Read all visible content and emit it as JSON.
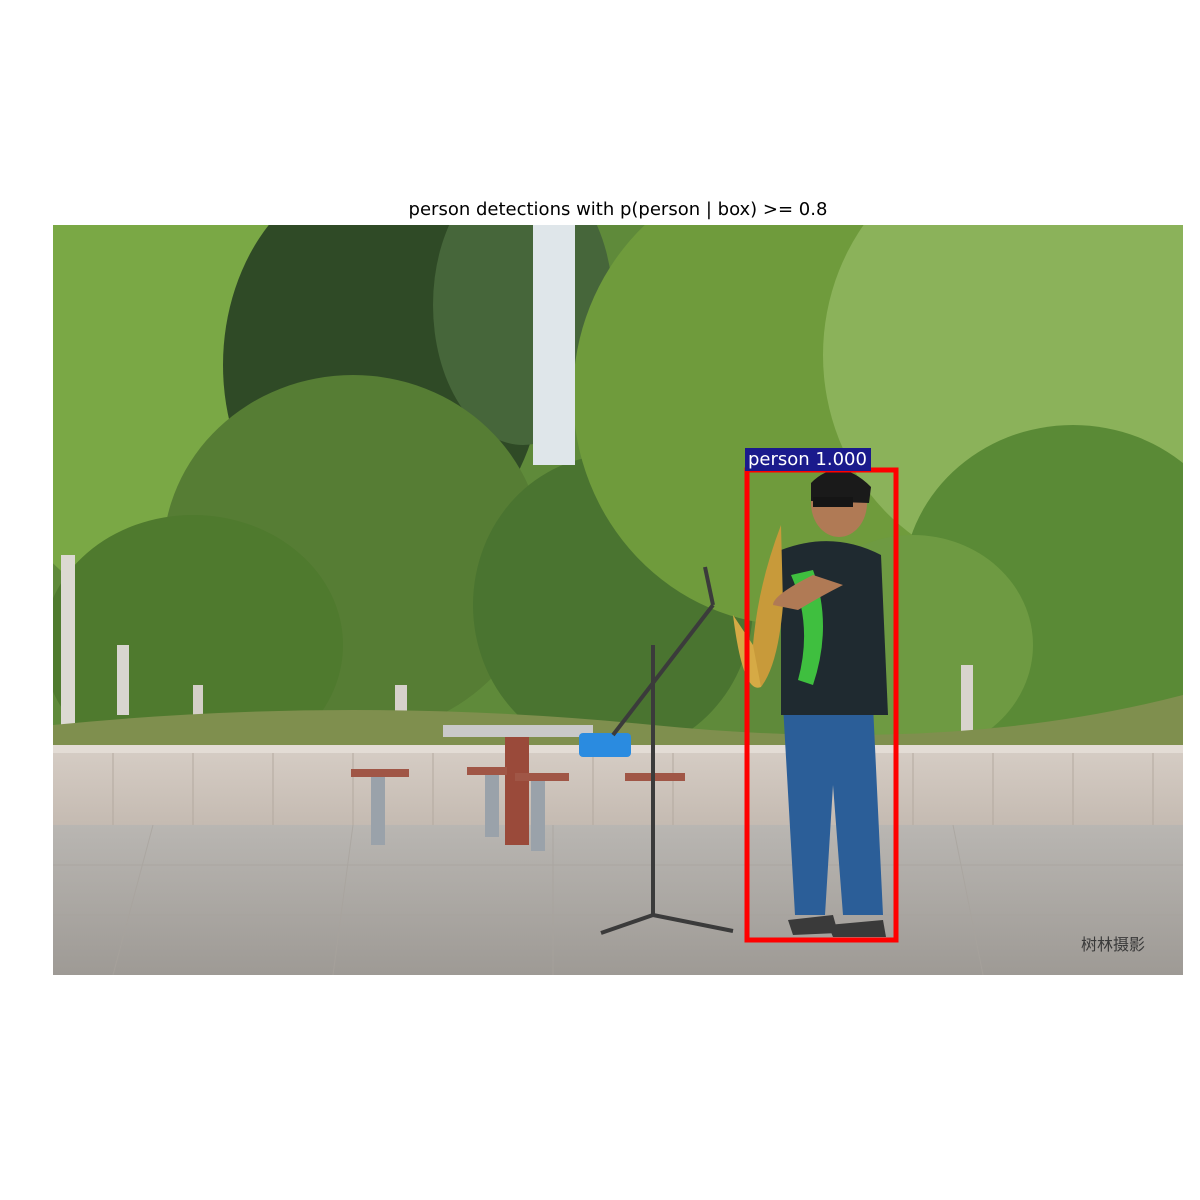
{
  "figure": {
    "title": "person detections with p(person | box) >= 0.8"
  },
  "detections": [
    {
      "label": "person",
      "score": "1.000",
      "text": "person 1.000",
      "box_color": "#ff0000",
      "label_bg": "#1a1a8c"
    }
  ],
  "photo": {
    "watermark": "树林摄影",
    "scene": "park-saxophone-player"
  }
}
